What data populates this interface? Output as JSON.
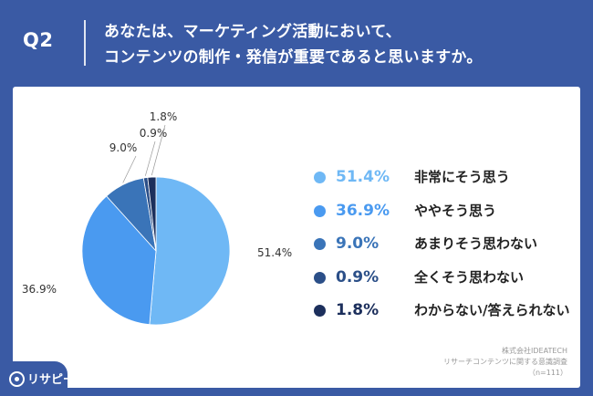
{
  "header": {
    "q_label": "Q2",
    "question_line1": "あなたは、マーケティング活動において、",
    "question_line2": "コンテンツの制作・発信が重要であると思いますか。"
  },
  "colors": {
    "background": "#3a5aa4",
    "series": [
      "#6fb8f5",
      "#4a9af0",
      "#3a74b8",
      "#2b4f88",
      "#1c2f5c"
    ]
  },
  "chart_data": {
    "type": "pie",
    "title": "あなたは、マーケティング活動において、コンテンツの制作・発信が重要であると思いますか。",
    "categories": [
      "非常にそう思う",
      "ややそう思う",
      "あまりそう思わない",
      "全くそう思わない",
      "わからない/答えられない"
    ],
    "values": [
      51.4,
      36.9,
      9.0,
      0.9,
      1.8
    ],
    "value_labels": [
      "51.4%",
      "36.9%",
      "9.0%",
      "0.9%",
      "1.8%"
    ],
    "legend": "right"
  },
  "legend": {
    "items": [
      {
        "pct": "51.4%",
        "label": "非常にそう思う"
      },
      {
        "pct": "36.9%",
        "label": "ややそう思う"
      },
      {
        "pct": "9.0%",
        "label": "あまりそう思わない"
      },
      {
        "pct": "0.9%",
        "label": "全くそう思わない"
      },
      {
        "pct": "1.8%",
        "label": "わからない/答えられない"
      }
    ]
  },
  "source": {
    "line1": "株式会社IDEATECH",
    "line2": "リサーチコンテンツに関する意識調査",
    "line3": "（n=111）"
  },
  "logo": {
    "text": "リサピー",
    "icon": "lightbulb-icon"
  }
}
